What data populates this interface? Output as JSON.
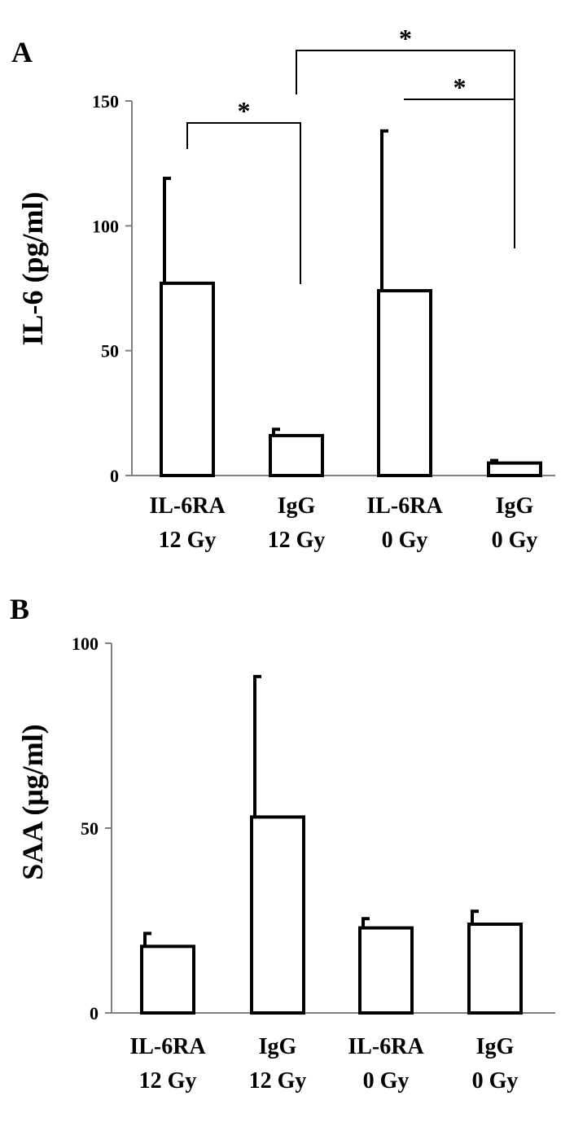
{
  "chart_data": [
    {
      "type": "bar",
      "panel": "A",
      "ylabel": "IL-6 (pg/ml)",
      "ylim": [
        0,
        150
      ],
      "yticks": [
        0,
        50,
        100,
        150
      ],
      "categories": [
        [
          "IL-6RA",
          "12 Gy"
        ],
        [
          "IgG",
          "12 Gy"
        ],
        [
          "IL-6RA",
          "0 Gy"
        ],
        [
          "IgG",
          "0 Gy"
        ]
      ],
      "values": [
        77,
        16,
        74,
        5
      ],
      "errors": [
        42,
        2.5,
        64,
        1
      ],
      "significance": [
        {
          "from": 0,
          "to": 1,
          "label": "*"
        },
        {
          "from": 1,
          "to": 3,
          "label": "*"
        },
        {
          "from": 2,
          "to": 3,
          "label": "*"
        }
      ]
    },
    {
      "type": "bar",
      "panel": "B",
      "ylabel": "SAA (μg/ml)",
      "ylim": [
        0,
        100
      ],
      "yticks": [
        0,
        50,
        100
      ],
      "categories": [
        [
          "IL-6RA",
          "12 Gy"
        ],
        [
          "IgG",
          "12 Gy"
        ],
        [
          "IL-6RA",
          "0 Gy"
        ],
        [
          "IgG",
          "0 Gy"
        ]
      ],
      "values": [
        18,
        53,
        23,
        24
      ],
      "errors": [
        3.5,
        38,
        2.5,
        3.5
      ]
    }
  ]
}
